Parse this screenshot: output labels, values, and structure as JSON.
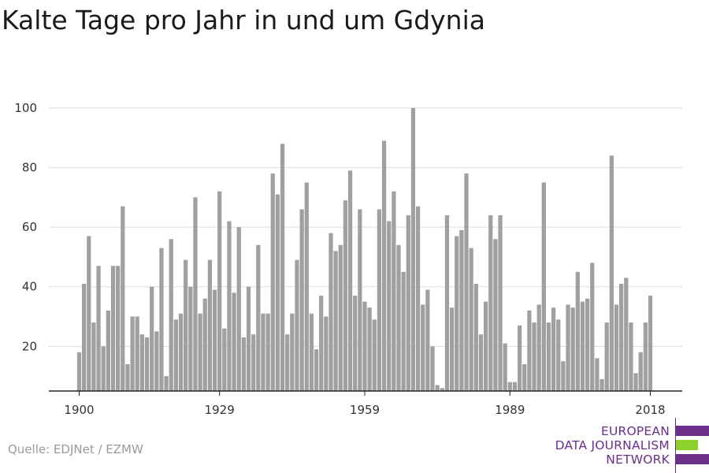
{
  "source": "Quelle: EDJNet / EZMW",
  "logo": {
    "lines": [
      "EUROPEAN",
      "DATA JOURNALISM",
      "NETWORK"
    ],
    "colors": {
      "purple": "#6b2f8a",
      "green": "#8cd12e"
    }
  },
  "colors": {
    "bar": "#a0a0a0",
    "grid": "#dddddd",
    "axis": "#222222"
  },
  "chart_data": {
    "type": "bar",
    "title": "Kalte Tage pro Jahr in und um Gdynia",
    "xlabel": "",
    "ylabel": "",
    "x_tick_labels": [
      "1900",
      "1929",
      "1959",
      "1989",
      "2018"
    ],
    "y_ticks": [
      20,
      40,
      60,
      80,
      100
    ],
    "ylim": [
      5,
      100
    ],
    "grid": true,
    "x": [
      1900,
      1901,
      1902,
      1903,
      1904,
      1905,
      1906,
      1907,
      1908,
      1909,
      1910,
      1911,
      1912,
      1913,
      1914,
      1915,
      1916,
      1917,
      1918,
      1919,
      1920,
      1921,
      1922,
      1923,
      1924,
      1925,
      1926,
      1927,
      1928,
      1929,
      1930,
      1931,
      1932,
      1933,
      1934,
      1935,
      1936,
      1937,
      1938,
      1939,
      1940,
      1941,
      1942,
      1943,
      1944,
      1945,
      1946,
      1947,
      1948,
      1949,
      1950,
      1951,
      1952,
      1953,
      1954,
      1955,
      1956,
      1957,
      1958,
      1959,
      1960,
      1961,
      1962,
      1963,
      1964,
      1965,
      1966,
      1967,
      1968,
      1969,
      1970,
      1971,
      1972,
      1973,
      1974,
      1975,
      1976,
      1977,
      1978,
      1979,
      1980,
      1981,
      1982,
      1983,
      1984,
      1985,
      1986,
      1987,
      1988,
      1989,
      1990,
      1991,
      1992,
      1993,
      1994,
      1995,
      1996,
      1997,
      1998,
      1999,
      2000,
      2001,
      2002,
      2003,
      2004,
      2005,
      2006,
      2007,
      2008,
      2009,
      2010,
      2011,
      2012,
      2013,
      2014,
      2015,
      2016,
      2017,
      2018
    ],
    "values": [
      18,
      41,
      57,
      28,
      47,
      20,
      32,
      47,
      47,
      67,
      14,
      30,
      30,
      24,
      23,
      40,
      25,
      53,
      10,
      56,
      29,
      31,
      49,
      40,
      70,
      31,
      36,
      49,
      39,
      72,
      26,
      62,
      38,
      60,
      23,
      40,
      24,
      54,
      31,
      31,
      78,
      71,
      88,
      24,
      31,
      49,
      66,
      75,
      31,
      19,
      37,
      30,
      58,
      52,
      54,
      69,
      79,
      37,
      66,
      35,
      33,
      29,
      66,
      89,
      62,
      72,
      54,
      45,
      64,
      100,
      67,
      34,
      39,
      20,
      7,
      6,
      64,
      33,
      57,
      59,
      78,
      53,
      41,
      24,
      35,
      64,
      56,
      64,
      21,
      8,
      8,
      27,
      14,
      32,
      28,
      34,
      75,
      28,
      33,
      29,
      15,
      34,
      33,
      45,
      35,
      36,
      48,
      16,
      9,
      28,
      84,
      34,
      41,
      43,
      28,
      11,
      18,
      28,
      37
    ]
  }
}
